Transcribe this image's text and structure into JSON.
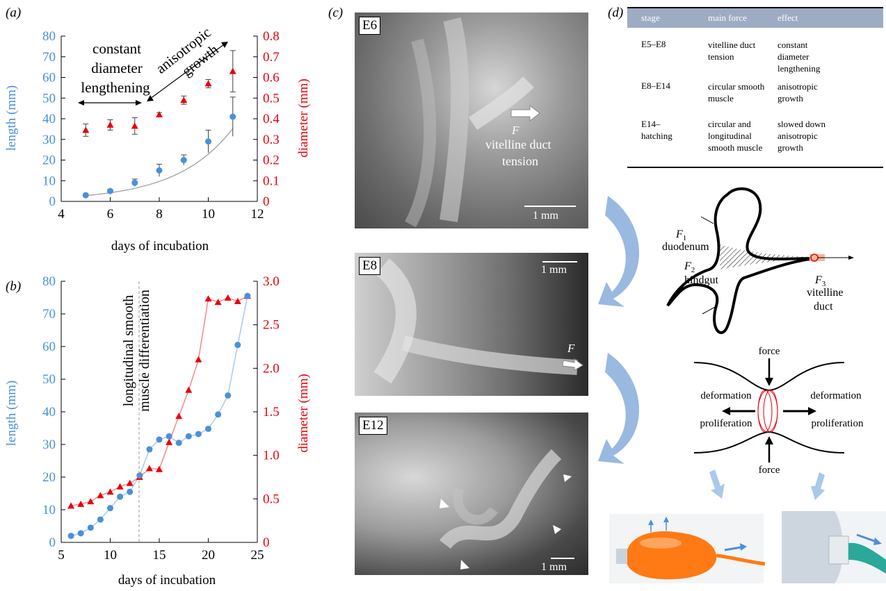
{
  "panel_a": {
    "label": "(a)",
    "xlabel": "days of incubation",
    "ylabel_left": "length (mm)",
    "ylabel_right": "diameter (mm)",
    "xticks": [
      "4",
      "6",
      "8",
      "10",
      "12"
    ],
    "yticks_left": [
      "0",
      "10",
      "20",
      "30",
      "40",
      "50",
      "60",
      "70",
      "80"
    ],
    "yticks_right": [
      "0",
      "0.1",
      "0.2",
      "0.3",
      "0.4",
      "0.5",
      "0.6",
      "0.7",
      "0.8"
    ],
    "annotation_left_1": "constant",
    "annotation_left_2": "diameter",
    "annotation_left_3": "lengthening",
    "annotation_right_1": "anisotropic",
    "annotation_right_2": "growth"
  },
  "panel_b": {
    "label": "(b)",
    "xlabel": "days of incubation",
    "ylabel_left": "length (mm)",
    "ylabel_right": "diameter (mm)",
    "xticks": [
      "5",
      "10",
      "15",
      "20",
      "25"
    ],
    "yticks_left": [
      "0",
      "10",
      "20",
      "30",
      "40",
      "50",
      "60",
      "70",
      "80"
    ],
    "yticks_right": [
      "0",
      "0.5",
      "1.0",
      "1.5",
      "2.0",
      "2.5",
      "3.0"
    ],
    "annotation_1": "longitudinal smooth",
    "annotation_2": "muscle differentiation"
  },
  "panel_c": {
    "label": "(c)",
    "e6_tag": "E6",
    "e6_force": "F",
    "e6_text_1": "vitelline duct",
    "e6_text_2": "tension",
    "e6_scale": "1 mm",
    "e8_tag": "E8",
    "e8_force": "F",
    "e8_scale": "1 mm",
    "e12_tag": "E12",
    "e12_scale": "1 mm"
  },
  "panel_d": {
    "label": "(d)",
    "table_header": [
      "stage",
      "main force",
      "effect"
    ],
    "table_rows": [
      {
        "stage": [
          "E5–E8"
        ],
        "force": [
          "vitelline duct",
          "tension"
        ],
        "effect": [
          "constant",
          "diameter",
          "lengthening"
        ]
      },
      {
        "stage": [
          "E8–E14"
        ],
        "force": [
          "circular smooth",
          "muscle"
        ],
        "effect": [
          "anisotropic",
          "growth"
        ]
      },
      {
        "stage": [
          "E14–",
          "hatching"
        ],
        "force": [
          "circular and",
          "longitudinal",
          "smooth muscle"
        ],
        "effect": [
          "slowed down",
          "anisotropic",
          "growth"
        ]
      }
    ],
    "f1_label": "F",
    "f1_sub": "1",
    "f1_text": "duodenum",
    "f2_label": "F",
    "f2_sub": "2",
    "f2_text": "hindgut",
    "f3_label": "F",
    "f3_sub": "3",
    "f3_text_1": "vitelline",
    "f3_text_2": "duct",
    "force_top": "force",
    "force_bottom": "force",
    "deform_left": "deformation",
    "prolif_left": "proliferation",
    "deform_right": "deformation",
    "prolif_right": "proliferation"
  },
  "colors": {
    "blue": "#4a90d9",
    "red": "#e8000b",
    "line_blue": "#a9c9ea",
    "line_red": "#f08a8a",
    "arrow_blue": "#7fa7d9"
  },
  "chart_data": [
    {
      "type": "scatter",
      "xlim": [
        4,
        12
      ],
      "ylim_left": [
        0,
        80
      ],
      "ylim_right": [
        0,
        0.8
      ],
      "series": [
        {
          "name": "length (mm)",
          "axis": "left",
          "x": [
            5,
            6,
            7,
            8,
            9,
            10,
            11
          ],
          "y": [
            3,
            5,
            9,
            15,
            20,
            29,
            41
          ],
          "err": [
            0.5,
            0.8,
            1.8,
            3,
            2.5,
            5.5,
            9.5
          ]
        },
        {
          "name": "diameter (mm)",
          "axis": "right",
          "x": [
            5,
            6,
            7,
            8,
            9,
            10,
            11
          ],
          "y": [
            0.345,
            0.37,
            0.365,
            0.42,
            0.49,
            0.57,
            0.63
          ],
          "err": [
            0.03,
            0.025,
            0.04,
            0.01,
            0.02,
            0.02,
            0.1
          ]
        }
      ]
    },
    {
      "type": "line",
      "xlim": [
        5,
        25
      ],
      "ylim_left": [
        0,
        80
      ],
      "ylim_right": [
        0,
        3.0
      ],
      "series": [
        {
          "name": "length (mm)",
          "axis": "left",
          "x": [
            6,
            7,
            8,
            9,
            10,
            11,
            12,
            13,
            14,
            15,
            16,
            17,
            18,
            19,
            20,
            21,
            22,
            23,
            24
          ],
          "y": [
            2,
            2.8,
            4.5,
            7,
            10.5,
            14,
            15.5,
            20.5,
            28.5,
            31.5,
            32.5,
            30.5,
            32.5,
            33.2,
            34.8,
            39.2,
            45,
            60.5,
            75.5
          ]
        },
        {
          "name": "diameter (mm)",
          "axis": "right",
          "x": [
            6,
            7,
            8,
            9,
            10,
            11,
            12,
            13,
            14,
            15,
            16,
            17,
            18,
            19,
            20,
            21,
            22,
            23,
            24
          ],
          "y": [
            0.42,
            0.44,
            0.47,
            0.54,
            0.58,
            0.64,
            0.68,
            0.75,
            0.85,
            0.84,
            1.15,
            1.45,
            1.75,
            2.1,
            2.8,
            2.76,
            2.81,
            2.77,
            2.83
          ]
        }
      ]
    }
  ]
}
